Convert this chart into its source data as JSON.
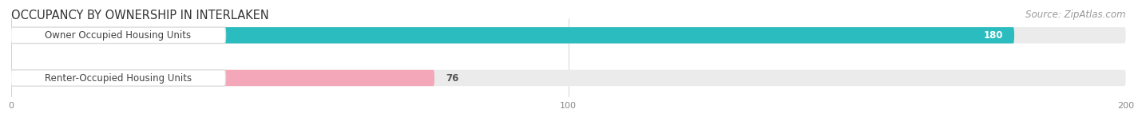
{
  "title": "OCCUPANCY BY OWNERSHIP IN INTERLAKEN",
  "source": "Source: ZipAtlas.com",
  "categories": [
    "Owner Occupied Housing Units",
    "Renter-Occupied Housing Units"
  ],
  "values": [
    180,
    76
  ],
  "bar_colors": [
    "#2bbcbf",
    "#f4a7b9"
  ],
  "bar_bg_color": "#ebebeb",
  "xlim": [
    0,
    200
  ],
  "xticks": [
    0,
    100,
    200
  ],
  "title_fontsize": 10.5,
  "source_fontsize": 8.5,
  "label_fontsize": 8.5,
  "value_fontsize": 8.5,
  "fig_bg_color": "#ffffff"
}
